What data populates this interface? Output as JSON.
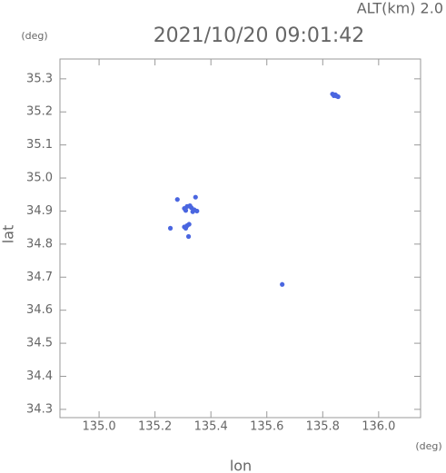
{
  "chart_data": {
    "type": "scatter",
    "title": "2021/10/20 09:01:42",
    "subtitle": "ALT(km) 2.0",
    "x_label": "lon",
    "y_label": "lat",
    "x_unit": "(deg)",
    "y_unit": "(deg)",
    "color": "#4a66e0",
    "x": [
      135.835,
      135.845,
      135.85,
      135.84,
      135.855,
      135.305,
      135.315,
      135.325,
      135.33,
      135.34,
      135.35,
      135.335,
      135.31,
      135.305,
      135.315,
      135.322,
      135.31,
      135.32,
      135.28,
      135.345,
      135.255,
      135.655
    ],
    "y": [
      35.254,
      35.252,
      35.248,
      35.249,
      35.246,
      34.908,
      34.914,
      34.916,
      34.91,
      34.904,
      34.9,
      34.898,
      34.902,
      34.852,
      34.856,
      34.86,
      34.848,
      34.823,
      34.935,
      34.942,
      34.848,
      34.678
    ],
    "xlim": [
      134.86,
      136.15
    ],
    "ylim": [
      34.275,
      35.36
    ],
    "xticks": [
      {
        "value": 135,
        "label": "135.0"
      },
      135.2,
      135.4,
      135.6,
      135.8,
      {
        "value": 136,
        "label": "136.0"
      }
    ],
    "yticks": [
      34.3,
      34.4,
      34.5,
      34.6,
      34.7,
      34.8,
      34.9,
      {
        "value": 35,
        "label": "35.0"
      },
      35.1,
      35.2,
      35.3
    ]
  }
}
